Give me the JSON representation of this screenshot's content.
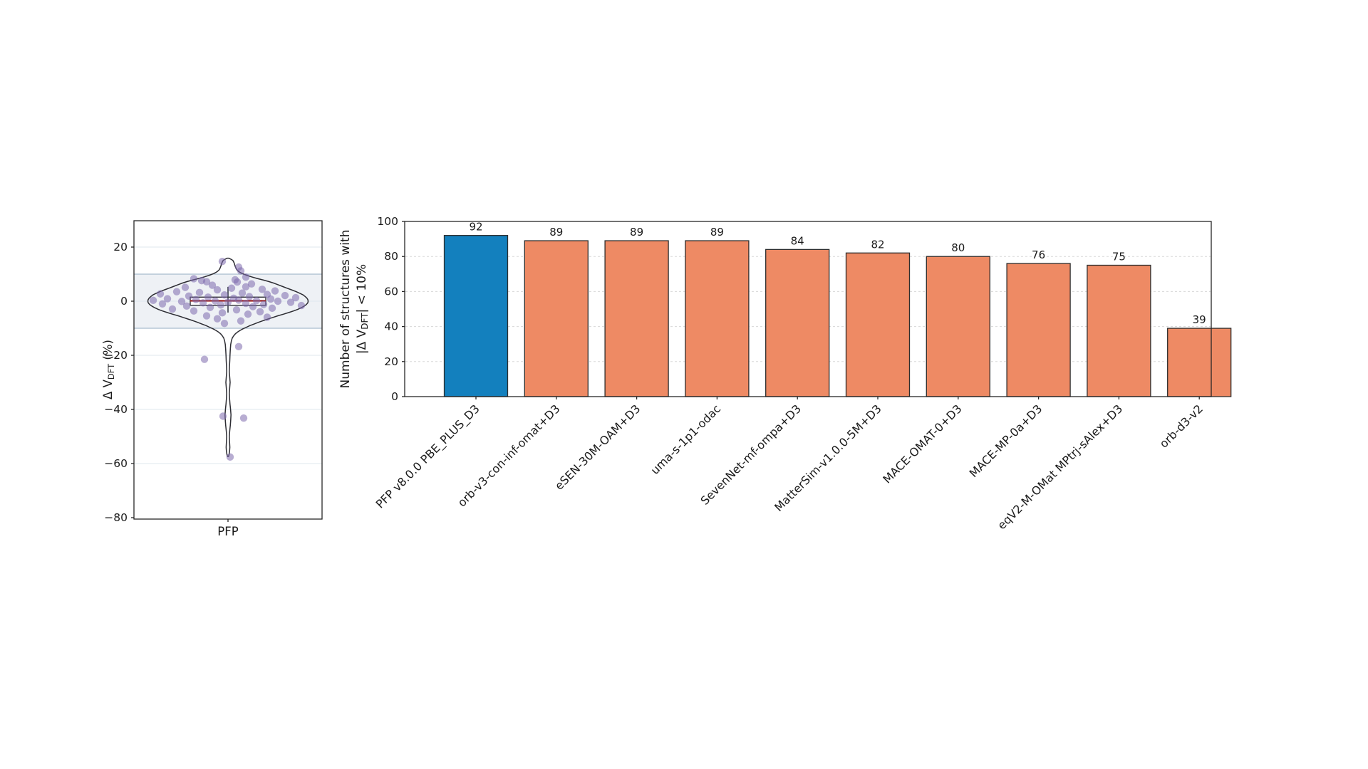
{
  "figure": {
    "background": "#ffffff"
  },
  "chart_data": [
    {
      "type": "violin",
      "title": "",
      "categories": [
        "PFP"
      ],
      "ylabel_parts": {
        "pre": "Δ V",
        "sub": "DFT",
        "post": " (%)"
      },
      "ylim": [
        -80,
        29.7
      ],
      "yticks": [
        20,
        0,
        -20,
        -40,
        -60,
        -80
      ],
      "ytick_labels": [
        "20",
        "0",
        "−20",
        "−40",
        "−60",
        "−80"
      ],
      "grid": "horizontal solid",
      "shaded_band": {
        "low": -10,
        "high": 10
      },
      "box": {
        "median": 0.15,
        "q1": -1.5,
        "q3": 1.5,
        "whisker_low": -4.2,
        "whisker_high": 5.3
      },
      "points": [
        [
          -8,
          14.7
        ],
        [
          15,
          12.6
        ],
        [
          18,
          11.2
        ],
        [
          25,
          8.9
        ],
        [
          -48,
          8.3
        ],
        [
          -37,
          7.6
        ],
        [
          -30,
          7.2
        ],
        [
          10,
          7.9
        ],
        [
          13,
          7.1
        ],
        [
          33,
          6.4
        ],
        [
          -22,
          5.9
        ],
        [
          25,
          5.3
        ],
        [
          -60,
          5.1
        ],
        [
          5,
          4.8
        ],
        [
          48,
          4.4
        ],
        [
          -15,
          4.2
        ],
        [
          66,
          3.8
        ],
        [
          -72,
          3.5
        ],
        [
          -40,
          3.2
        ],
        [
          20,
          3.0
        ],
        [
          -95,
          2.7
        ],
        [
          55,
          2.5
        ],
        [
          -5,
          2.3
        ],
        [
          80,
          2.1
        ],
        [
          -55,
          1.9
        ],
        [
          30,
          1.7
        ],
        [
          -28,
          1.5
        ],
        [
          95,
          1.3
        ],
        [
          8,
          1.1
        ],
        [
          -85,
          0.9
        ],
        [
          60,
          0.8
        ],
        [
          -45,
          0.6
        ],
        [
          15,
          0.4
        ],
        [
          -105,
          0.3
        ],
        [
          40,
          0.2
        ],
        [
          -18,
          0.1
        ],
        [
          70,
          0.0
        ],
        [
          -65,
          -0.1
        ],
        [
          0,
          -0.3
        ],
        [
          88,
          -0.4
        ],
        [
          -35,
          -0.6
        ],
        [
          25,
          -0.8
        ],
        [
          -92,
          -1.0
        ],
        [
          50,
          -1.2
        ],
        [
          -10,
          -1.4
        ],
        [
          103,
          -1.6
        ],
        [
          -58,
          -1.8
        ],
        [
          35,
          -2.0
        ],
        [
          -25,
          -2.3
        ],
        [
          62,
          -2.6
        ],
        [
          -78,
          -2.9
        ],
        [
          12,
          -3.2
        ],
        [
          -48,
          -3.6
        ],
        [
          45,
          -3.9
        ],
        [
          -8,
          -4.3
        ],
        [
          28,
          -4.8
        ],
        [
          -30,
          -5.4
        ],
        [
          55,
          -5.9
        ],
        [
          -15,
          -6.5
        ],
        [
          18,
          -7.3
        ],
        [
          -5,
          -8.2
        ],
        [
          15,
          -16.8
        ],
        [
          -33,
          -21.5
        ],
        [
          -7,
          -42.5
        ],
        [
          22,
          -43.2
        ],
        [
          3,
          -57.6
        ]
      ],
      "violin_profile": [
        [
          15.9,
          1
        ],
        [
          15.4,
          5
        ],
        [
          15.0,
          7
        ],
        [
          14.2,
          8.5
        ],
        [
          13.4,
          9.5
        ],
        [
          12.6,
          10.5
        ],
        [
          12.0,
          11.5
        ],
        [
          11.4,
          13
        ],
        [
          10.8,
          16
        ],
        [
          10.2,
          20
        ],
        [
          9.6,
          26
        ],
        [
          9.0,
          33
        ],
        [
          8.4,
          41
        ],
        [
          7.8,
          50
        ],
        [
          7.2,
          58
        ],
        [
          6.6,
          65
        ],
        [
          6.0,
          71
        ],
        [
          5.4,
          77
        ],
        [
          4.8,
          83
        ],
        [
          4.2,
          89
        ],
        [
          3.6,
          95
        ],
        [
          3.0,
          100
        ],
        [
          2.4,
          105
        ],
        [
          1.8,
          108
        ],
        [
          1.2,
          110.5
        ],
        [
          0.6,
          112
        ],
        [
          0.0,
          112.5
        ],
        [
          -0.6,
          112
        ],
        [
          -1.2,
          110
        ],
        [
          -1.8,
          107
        ],
        [
          -2.4,
          103
        ],
        [
          -3.0,
          98
        ],
        [
          -3.6,
          92
        ],
        [
          -4.2,
          85
        ],
        [
          -4.8,
          78
        ],
        [
          -5.4,
          70
        ],
        [
          -6.0,
          63
        ],
        [
          -6.6,
          56
        ],
        [
          -7.2,
          49
        ],
        [
          -7.8,
          43
        ],
        [
          -8.4,
          37
        ],
        [
          -9.0,
          31
        ],
        [
          -9.6,
          26
        ],
        [
          -10.2,
          21
        ],
        [
          -10.8,
          17
        ],
        [
          -11.4,
          13.5
        ],
        [
          -12.0,
          10.5
        ],
        [
          -12.8,
          8
        ],
        [
          -13.6,
          6
        ],
        [
          -14.6,
          4.8
        ],
        [
          -16,
          3.8
        ],
        [
          -18,
          3.2
        ],
        [
          -20,
          2.8
        ],
        [
          -22,
          2.5
        ],
        [
          -24,
          2.1
        ],
        [
          -26,
          1.8
        ],
        [
          -28,
          2.4
        ],
        [
          -30,
          3.0
        ],
        [
          -32,
          2.4
        ],
        [
          -34,
          1.9
        ],
        [
          -36,
          2.2
        ],
        [
          -38,
          2.8
        ],
        [
          -40,
          3.6
        ],
        [
          -42,
          4.2
        ],
        [
          -44,
          3.8
        ],
        [
          -46,
          3.2
        ],
        [
          -48,
          2.4
        ],
        [
          -50,
          1.9
        ],
        [
          -52,
          2.2
        ],
        [
          -54,
          2.6
        ],
        [
          -55.5,
          2.2
        ],
        [
          -56.6,
          1.5
        ],
        [
          -57.4,
          0.8
        ]
      ],
      "colors": {
        "point": "#7d69ad",
        "violin_edge": "#2d2d33",
        "box_edge": "#2d2d33",
        "median": "#9e2b2b",
        "whisker": "#3a3f4a",
        "band_fill": "#eef1f5",
        "band_edge": "#a9bccd",
        "grid": "#dfe7ee",
        "spine": "#262626",
        "text": "#1a1a1a"
      }
    },
    {
      "type": "bar",
      "title": "",
      "categories": [
        "PFP v8.0.0 PBE_PLUS_D3",
        "orb-v3-con-inf-omat+D3",
        "eSEN-30M-OAM+D3",
        "uma-s-1p1-odac",
        "SevenNet-mf-ompa+D3",
        "MatterSim-v1.0.0-5M+D3",
        "MACE-OMAT-0+D3",
        "MACE-MP-0a+D3",
        "eqV2-M-OMat MPtrj-sAlex+D3",
        "orb-d3-v2"
      ],
      "values": [
        92,
        89,
        89,
        89,
        84,
        82,
        80,
        76,
        75,
        39
      ],
      "bar_value_labels": [
        "92",
        "89",
        "89",
        "89",
        "84",
        "82",
        "80",
        "76",
        "75",
        "39"
      ],
      "highlight_index": 0,
      "ylabel_line1": "Number of structures with",
      "ylabel_line2_parts": {
        "pre": "|Δ V",
        "sub": "DFT",
        "post": "| < 10%"
      },
      "ylim": [
        0,
        100
      ],
      "yticks": [
        0,
        20,
        40,
        60,
        80,
        100
      ],
      "grid": "horizontal dashed",
      "legend": "none",
      "colors": {
        "highlight_bar": "#1380be",
        "bar": "#ee8a64",
        "bar_edge": "#2d2d2d",
        "grid": "#d8d8d8",
        "spine": "#262626",
        "text": "#1a1a1a"
      }
    }
  ]
}
